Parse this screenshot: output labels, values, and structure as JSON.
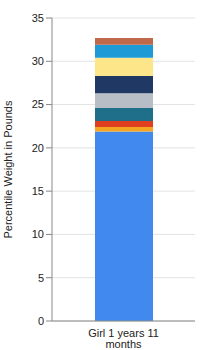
{
  "chart_data": {
    "type": "bar",
    "categories": [
      "Girl 1 years 11 months"
    ],
    "y_label": "Percentile Weight in Pounds",
    "stacked": true,
    "grid": true,
    "ylim": [
      0,
      35
    ],
    "yticks": [
      0,
      5,
      10,
      15,
      20,
      25,
      30,
      35
    ],
    "series": [
      {
        "color": "#4189ee",
        "values": [
          21.9
        ]
      },
      {
        "color": "#f5a623",
        "values": [
          0.5
        ]
      },
      {
        "color": "#e0401f",
        "values": [
          0.7
        ]
      },
      {
        "color": "#1f6f8b",
        "values": [
          1.5
        ]
      },
      {
        "color": "#b8bec5",
        "values": [
          1.7
        ]
      },
      {
        "color": "#1f3864",
        "values": [
          2.0
        ]
      },
      {
        "color": "#fde58a",
        "values": [
          2.1
        ]
      },
      {
        "color": "#1e9ad6",
        "values": [
          1.5
        ]
      },
      {
        "color": "#c0694a",
        "values": [
          0.8
        ]
      }
    ]
  }
}
